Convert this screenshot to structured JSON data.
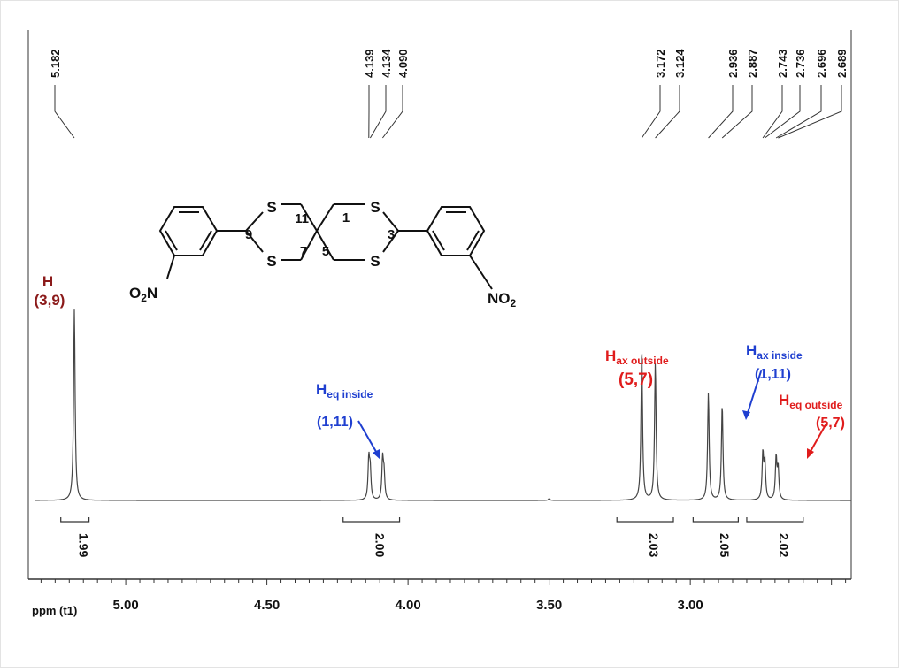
{
  "colors": {
    "spectrum": "#444444",
    "axis": "#333333",
    "label_dark_red": "#8b1a1a",
    "label_red": "#e01c1c",
    "label_blue": "#1f3fd0",
    "text": "#111111"
  },
  "chart_data": {
    "type": "line",
    "title": "",
    "xlabel": "ppm (t1)",
    "ylabel": "",
    "xlim": [
      5.32,
      2.43
    ],
    "x_reversed": true,
    "grid": false,
    "x_ticks": [
      "5.00",
      "4.50",
      "4.00",
      "3.50",
      "3.00"
    ],
    "x_tick_values": [
      5.0,
      4.5,
      4.0,
      3.5,
      3.0
    ],
    "peak_labels": [
      "5.182",
      "4.139",
      "4.134",
      "4.090",
      "3.172",
      "3.124",
      "2.936",
      "2.887",
      "2.743",
      "2.736",
      "2.696",
      "2.689"
    ],
    "peaks": [
      {
        "ppm": 5.182,
        "intensity": 1.0
      },
      {
        "ppm": 4.139,
        "intensity": 0.21
      },
      {
        "ppm": 4.134,
        "intensity": 0.15
      },
      {
        "ppm": 4.09,
        "intensity": 0.21
      },
      {
        "ppm": 4.085,
        "intensity": 0.13
      },
      {
        "ppm": 3.172,
        "intensity": 0.8
      },
      {
        "ppm": 3.124,
        "intensity": 0.72
      },
      {
        "ppm": 2.936,
        "intensity": 0.56
      },
      {
        "ppm": 2.887,
        "intensity": 0.5
      },
      {
        "ppm": 2.743,
        "intensity": 0.24
      },
      {
        "ppm": 2.736,
        "intensity": 0.19
      },
      {
        "ppm": 2.696,
        "intensity": 0.22
      },
      {
        "ppm": 2.689,
        "intensity": 0.16
      }
    ],
    "baseline_blips": [
      {
        "ppm": 3.5,
        "intensity": 0.01
      }
    ],
    "integrals": [
      {
        "from": 5.23,
        "to": 5.13,
        "value": "1.99"
      },
      {
        "from": 4.23,
        "to": 4.03,
        "value": "2.00"
      },
      {
        "from": 3.26,
        "to": 3.06,
        "value": "2.03"
      },
      {
        "from": 2.99,
        "to": 2.83,
        "value": "2.05"
      },
      {
        "from": 2.8,
        "to": 2.6,
        "value": "2.02"
      }
    ],
    "annotations": {
      "h39_line1": "H",
      "h39_line2": "(3,9)",
      "heq_in_main": "H",
      "heq_in_sub": "eq inside",
      "heq_in_num": "(1,11)",
      "hax_out_main": "H",
      "hax_out_sub": "ax outside",
      "hax_out_num": "(5,7)",
      "hax_in_main": "H",
      "hax_in_sub": "ax inside",
      "hax_in_num": "(1,11)",
      "heq_out_main": "H",
      "heq_out_sub": "eq outside",
      "heq_out_num": "(5,7)"
    }
  },
  "structure": {
    "S": "S",
    "n9": "9",
    "n11": "11",
    "n7": "7",
    "n1": "1",
    "n5": "5",
    "n3": "3",
    "O2N_main": "O",
    "O2N_sub": "2",
    "O2N_end": "N",
    "NO2_main": "NO",
    "NO2_sub": "2"
  }
}
